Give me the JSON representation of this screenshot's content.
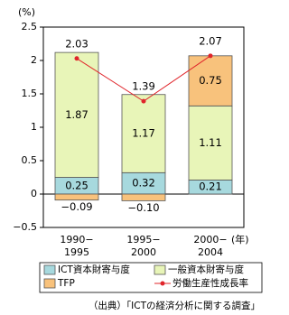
{
  "chart_data": {
    "type": "bar",
    "stacked": true,
    "y_unit_label": "(%)",
    "x_unit_label": "(年)",
    "source": "（出典）「ICTの経済分析に関する調査」",
    "categories": [
      [
        "1990−",
        "1995"
      ],
      [
        "1995−",
        "2000"
      ],
      [
        "2000−",
        "2004"
      ]
    ],
    "series": [
      {
        "name": "ICT資本財寄与度",
        "color": "#a7d9de",
        "values": [
          0.25,
          0.32,
          0.21
        ]
      },
      {
        "name": "一般資本財寄与度",
        "color": "#e8f5b8",
        "values": [
          1.87,
          1.17,
          1.11
        ]
      },
      {
        "name": "TFP",
        "color": "#f8c27c",
        "values": [
          -0.09,
          -0.1,
          0.75
        ],
        "value_labels": [
          "−0.09",
          "−0.10",
          "0.75"
        ]
      },
      {
        "name": "労働生産性成長率",
        "type": "line",
        "color": "#e0242a",
        "values": [
          2.03,
          1.39,
          2.07
        ]
      }
    ],
    "ylim": [
      -0.5,
      2.5
    ],
    "yticks": [
      {
        "value": -0.5,
        "label": "−0.5"
      },
      0,
      0.5,
      1,
      1.5,
      2,
      2.5
    ]
  }
}
